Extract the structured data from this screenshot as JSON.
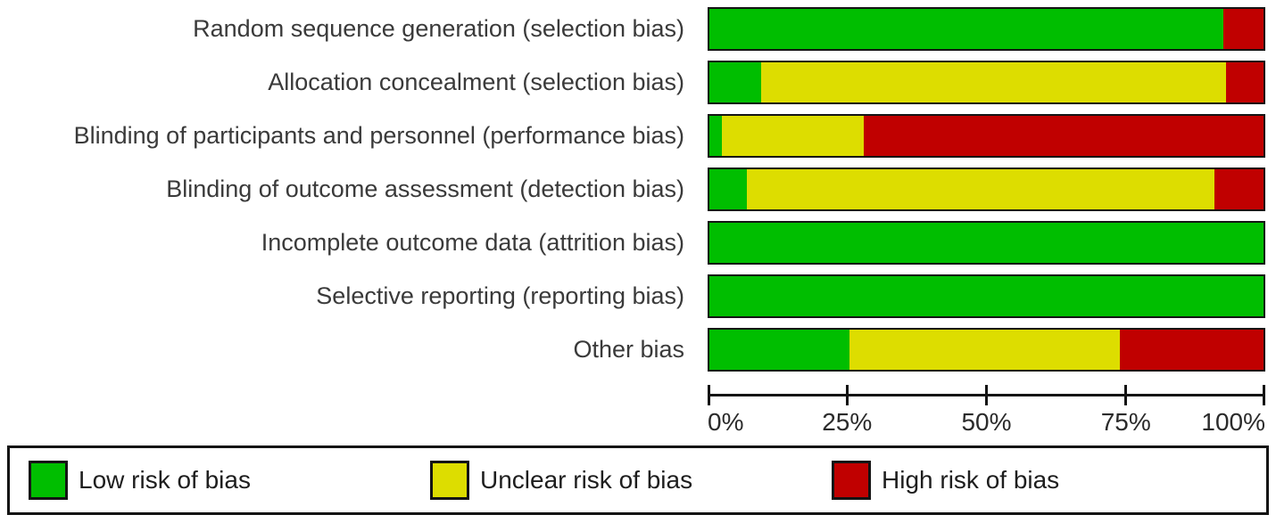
{
  "chart_data": {
    "type": "bar",
    "orientation": "horizontal",
    "stacked": true,
    "title": "",
    "xlabel": "",
    "ylabel": "",
    "grid": false,
    "legend_position": "bottom-boxed",
    "xlim": [
      0,
      100
    ],
    "x_ticks": [
      {
        "label": "0%",
        "value": 0
      },
      {
        "label": "25%",
        "value": 25
      },
      {
        "label": "50%",
        "value": 50
      },
      {
        "label": "75%",
        "value": 75
      },
      {
        "label": "100%",
        "value": 100
      }
    ],
    "categories": [
      "Random sequence generation (selection bias)",
      "Allocation concealment (selection bias)",
      "Blinding of participants and personnel (performance bias)",
      "Blinding of outcome assessment (detection bias)",
      "Incomplete outcome data (attrition bias)",
      "Selective reporting (reporting bias)",
      "Other bias"
    ],
    "series": [
      {
        "name": "Low risk of bias",
        "color": "#00BE00",
        "values": [
          92.8,
          9.3,
          2.3,
          6.8,
          100,
          100,
          25.3
        ]
      },
      {
        "name": "Unclear risk of bias",
        "color": "#DDDD00",
        "values": [
          0,
          84.0,
          25.6,
          84.3,
          0,
          0,
          48.7
        ]
      },
      {
        "name": "High risk of bias",
        "color": "#C00000",
        "values": [
          7.2,
          6.7,
          72.1,
          8.9,
          0,
          0,
          26.0
        ]
      }
    ],
    "colors": {
      "low_risk": "#00BE00",
      "unclear_risk": "#DDDD00",
      "high_risk": "#C00000",
      "bar_border": "#141414",
      "text": "#3a3a3a"
    }
  }
}
